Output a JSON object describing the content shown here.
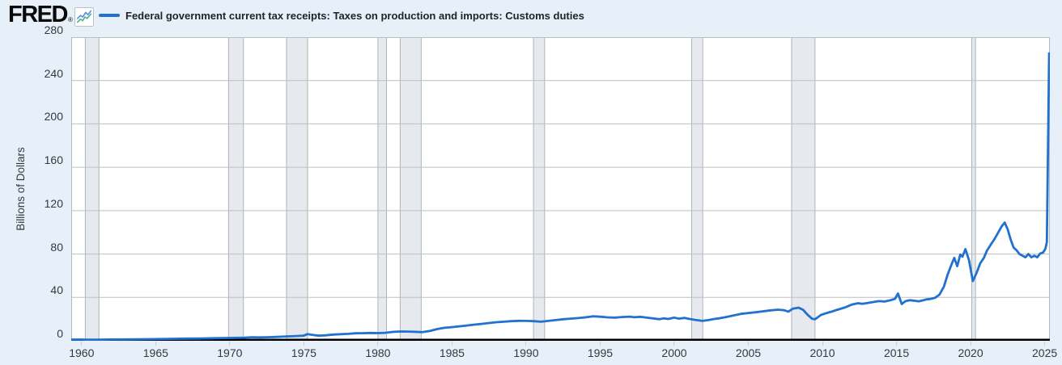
{
  "header": {
    "logo_text": "FRED",
    "registered_mark": "®",
    "chart_icon": "line-chart-icon",
    "legend_color": "#2171ce",
    "series_title": "Federal government current tax receipts: Taxes on production and imports: Customs duties"
  },
  "chart_data": {
    "type": "line",
    "title": "Federal government current tax receipts: Taxes on production and imports: Customs duties",
    "xlabel": "",
    "ylabel": "Billions of Dollars",
    "xlim": [
      1959.3,
      2025.35
    ],
    "ylim": [
      0,
      280
    ],
    "x_ticks": [
      1960,
      1965,
      1970,
      1975,
      1980,
      1985,
      1990,
      1995,
      2000,
      2005,
      2010,
      2015,
      2020,
      2025
    ],
    "y_ticks": [
      0,
      40,
      80,
      120,
      160,
      200,
      240,
      280
    ],
    "grid": "horizontal",
    "legend_position": "top-left",
    "recession_bands": [
      [
        1960.25,
        1961.17
      ],
      [
        1969.92,
        1970.92
      ],
      [
        1973.83,
        1975.25
      ],
      [
        1980.0,
        1980.58
      ],
      [
        1981.5,
        1982.92
      ],
      [
        1990.5,
        1991.25
      ],
      [
        2001.17,
        2001.92
      ],
      [
        2007.92,
        2009.5
      ],
      [
        2020.08,
        2020.33
      ]
    ],
    "colors": {
      "line": "#2171ce",
      "grid": "#bfbfbf",
      "plot_border": "#b3b8bc",
      "axis": "#000000",
      "band_fill": "#e6eaee",
      "band_edge": "#adb3b8",
      "page_bg": "#e7f0f9",
      "plot_bg": "#ffffff",
      "tick_label": "#32383e"
    },
    "series": [
      {
        "name": "Federal government current tax receipts: Taxes on production and imports: Customs duties",
        "units": "Billions of Dollars",
        "points": [
          [
            1959.3,
            1.1
          ],
          [
            1960.0,
            1.1
          ],
          [
            1960.5,
            1.0
          ],
          [
            1961.0,
            1.0
          ],
          [
            1962.0,
            1.2
          ],
          [
            1963.0,
            1.3
          ],
          [
            1964.0,
            1.4
          ],
          [
            1965.0,
            1.6
          ],
          [
            1966.0,
            1.8
          ],
          [
            1967.0,
            2.0
          ],
          [
            1968.0,
            2.1
          ],
          [
            1969.0,
            2.4
          ],
          [
            1970.0,
            2.6
          ],
          [
            1971.0,
            2.9
          ],
          [
            1971.5,
            3.3
          ],
          [
            1972.0,
            3.1
          ],
          [
            1972.5,
            3.3
          ],
          [
            1973.0,
            3.5
          ],
          [
            1974.0,
            4.1
          ],
          [
            1974.5,
            4.4
          ],
          [
            1975.0,
            4.8
          ],
          [
            1975.25,
            6.2
          ],
          [
            1975.5,
            5.6
          ],
          [
            1976.0,
            4.7
          ],
          [
            1976.5,
            5.1
          ],
          [
            1977.0,
            5.7
          ],
          [
            1978.0,
            6.4
          ],
          [
            1978.5,
            6.9
          ],
          [
            1979.0,
            7.0
          ],
          [
            1979.5,
            7.2
          ],
          [
            1980.0,
            7.1
          ],
          [
            1980.5,
            7.4
          ],
          [
            1981.0,
            8.2
          ],
          [
            1981.5,
            8.6
          ],
          [
            1982.0,
            8.5
          ],
          [
            1982.5,
            8.3
          ],
          [
            1983.0,
            8.0
          ],
          [
            1983.5,
            9.0
          ],
          [
            1984.0,
            10.8
          ],
          [
            1984.5,
            12.0
          ],
          [
            1985.0,
            12.6
          ],
          [
            1985.5,
            13.3
          ],
          [
            1986.0,
            14.1
          ],
          [
            1986.5,
            14.9
          ],
          [
            1987.0,
            15.6
          ],
          [
            1987.5,
            16.4
          ],
          [
            1988.0,
            17.1
          ],
          [
            1988.5,
            17.6
          ],
          [
            1989.0,
            18.1
          ],
          [
            1989.5,
            18.4
          ],
          [
            1990.0,
            18.3
          ],
          [
            1990.5,
            18.1
          ],
          [
            1991.0,
            17.6
          ],
          [
            1991.5,
            18.3
          ],
          [
            1992.0,
            19.1
          ],
          [
            1992.5,
            19.9
          ],
          [
            1993.0,
            20.4
          ],
          [
            1993.5,
            20.9
          ],
          [
            1994.0,
            21.6
          ],
          [
            1994.5,
            22.6
          ],
          [
            1995.0,
            22.2
          ],
          [
            1995.5,
            21.6
          ],
          [
            1996.0,
            21.4
          ],
          [
            1996.5,
            21.9
          ],
          [
            1997.0,
            22.3
          ],
          [
            1997.3,
            21.7
          ],
          [
            1997.7,
            22.1
          ],
          [
            1998.0,
            21.6
          ],
          [
            1998.5,
            20.8
          ],
          [
            1999.0,
            19.9
          ],
          [
            1999.3,
            20.7
          ],
          [
            1999.6,
            20.1
          ],
          [
            2000.0,
            21.4
          ],
          [
            2000.3,
            20.4
          ],
          [
            2000.7,
            21.1
          ],
          [
            2001.0,
            20.2
          ],
          [
            2001.4,
            19.3
          ],
          [
            2001.9,
            18.3
          ],
          [
            2002.3,
            19.1
          ],
          [
            2002.7,
            20.1
          ],
          [
            2003.0,
            20.6
          ],
          [
            2003.5,
            21.9
          ],
          [
            2004.0,
            23.4
          ],
          [
            2004.5,
            24.8
          ],
          [
            2005.0,
            25.6
          ],
          [
            2005.5,
            26.3
          ],
          [
            2006.0,
            27.2
          ],
          [
            2006.5,
            28.1
          ],
          [
            2007.0,
            28.7
          ],
          [
            2007.4,
            28.2
          ],
          [
            2007.7,
            26.9
          ],
          [
            2008.0,
            29.6
          ],
          [
            2008.4,
            30.5
          ],
          [
            2008.7,
            28.5
          ],
          [
            2009.0,
            24.0
          ],
          [
            2009.3,
            20.3
          ],
          [
            2009.5,
            19.8
          ],
          [
            2009.9,
            23.8
          ],
          [
            2010.3,
            25.6
          ],
          [
            2010.7,
            27.2
          ],
          [
            2011.0,
            28.6
          ],
          [
            2011.5,
            30.6
          ],
          [
            2012.0,
            33.4
          ],
          [
            2012.4,
            34.6
          ],
          [
            2012.7,
            34.1
          ],
          [
            2013.2,
            35.2
          ],
          [
            2013.8,
            36.6
          ],
          [
            2014.2,
            36.2
          ],
          [
            2014.6,
            37.4
          ],
          [
            2014.9,
            38.7
          ],
          [
            2015.1,
            43.6
          ],
          [
            2015.35,
            33.9
          ],
          [
            2015.6,
            36.5
          ],
          [
            2015.9,
            37.4
          ],
          [
            2016.2,
            36.9
          ],
          [
            2016.5,
            36.4
          ],
          [
            2016.8,
            37.3
          ],
          [
            2017.0,
            38.1
          ],
          [
            2017.3,
            38.6
          ],
          [
            2017.6,
            39.6
          ],
          [
            2017.9,
            42.5
          ],
          [
            2018.2,
            50.0
          ],
          [
            2018.45,
            61.0
          ],
          [
            2018.7,
            70.0
          ],
          [
            2018.9,
            76.5
          ],
          [
            2019.1,
            68.8
          ],
          [
            2019.3,
            79.5
          ],
          [
            2019.45,
            77.5
          ],
          [
            2019.65,
            84.5
          ],
          [
            2019.9,
            74.0
          ],
          [
            2020.15,
            55.0
          ],
          [
            2020.4,
            62.5
          ],
          [
            2020.65,
            71.5
          ],
          [
            2020.9,
            76.5
          ],
          [
            2021.1,
            83.0
          ],
          [
            2021.35,
            88.5
          ],
          [
            2021.6,
            93.5
          ],
          [
            2021.85,
            99.5
          ],
          [
            2022.1,
            105.5
          ],
          [
            2022.3,
            109.0
          ],
          [
            2022.5,
            103.0
          ],
          [
            2022.7,
            93.5
          ],
          [
            2022.9,
            86.0
          ],
          [
            2023.1,
            83.5
          ],
          [
            2023.3,
            80.0
          ],
          [
            2023.5,
            78.5
          ],
          [
            2023.7,
            77.0
          ],
          [
            2023.9,
            80.0
          ],
          [
            2024.1,
            77.0
          ],
          [
            2024.3,
            78.5
          ],
          [
            2024.5,
            77.0
          ],
          [
            2024.7,
            80.5
          ],
          [
            2024.9,
            81.5
          ],
          [
            2025.05,
            85.0
          ],
          [
            2025.15,
            91.0
          ],
          [
            2025.3,
            265.0
          ]
        ]
      }
    ]
  }
}
